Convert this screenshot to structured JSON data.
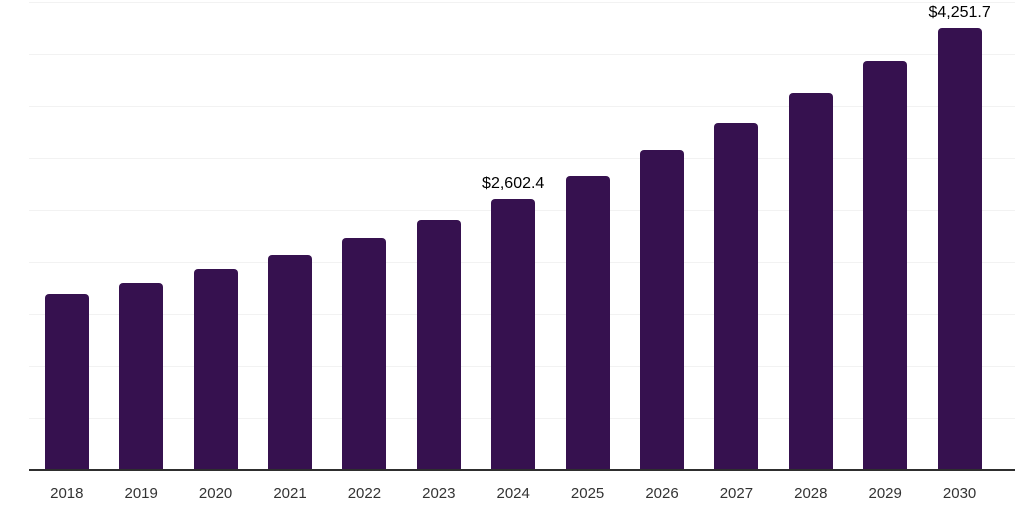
{
  "chart_data": {
    "type": "bar",
    "title": "",
    "xlabel": "",
    "ylabel": "",
    "categories": [
      "2018",
      "2019",
      "2020",
      "2021",
      "2022",
      "2023",
      "2024",
      "2025",
      "2026",
      "2027",
      "2028",
      "2029",
      "2030"
    ],
    "values": [
      1690,
      1800,
      1928,
      2072,
      2226,
      2406,
      2602.4,
      2824,
      3075,
      3338,
      3625,
      3930,
      4251.7
    ],
    "labeled_points": [
      {
        "category": "2024",
        "label": "$2,602.4"
      },
      {
        "category": "2030",
        "label": "$4,251.7"
      }
    ],
    "ylim": [
      0,
      4500
    ],
    "grid_step": 500,
    "grid": true,
    "legend": false,
    "colors": {
      "bar": "#36114F",
      "gridline": "#f2f2f2",
      "axis_line": "#2e2e2e",
      "tick_label": "#333333",
      "value_label": "#000000"
    }
  }
}
